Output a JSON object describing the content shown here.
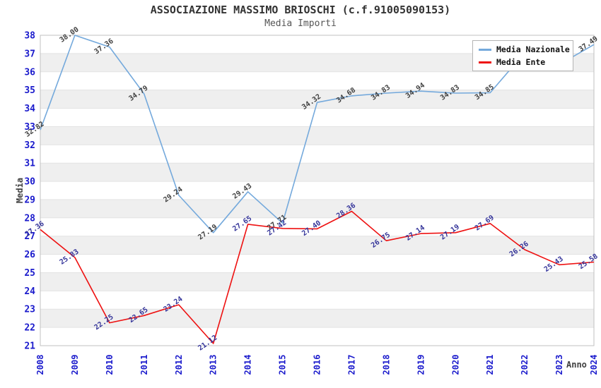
{
  "header": {
    "title": "ASSOCIAZIONE MASSIMO BRIOSCHI (c.f.91005090153)",
    "subtitle": "Media Importi"
  },
  "legend": {
    "items": [
      {
        "label": "Media Nazionale",
        "color": "#74a9dc"
      },
      {
        "label": "Media Ente",
        "color": "#ee1111"
      }
    ]
  },
  "axes": {
    "y_title": "Media",
    "x_title": "Anno"
  },
  "colors": {
    "tick_label_blue": "#1a1acc",
    "band_gray": "#efefef",
    "plot_border": "#c0c0c0",
    "nazionale_line": "#74a9dc",
    "ente_line": "#ee1111",
    "nazionale_point_label": "#404040",
    "ente_point_label": "#333399"
  },
  "chart_data": {
    "type": "line",
    "title": "ASSOCIAZIONE MASSIMO BRIOSCHI (c.f.91005090153)",
    "subtitle": "Media Importi",
    "xlabel": "Anno",
    "ylabel": "Media",
    "ylim": [
      21,
      38
    ],
    "grid": "horizontal-bands-alternating",
    "legend_position": "top-right-inside",
    "x": [
      2008,
      2009,
      2010,
      2011,
      2012,
      2013,
      2014,
      2015,
      2016,
      2017,
      2018,
      2019,
      2020,
      2021,
      2022,
      2023,
      2024
    ],
    "series": [
      {
        "name": "Media Nazionale",
        "color": "#74a9dc",
        "label_color": "#404040",
        "values": [
          32.82,
          38.0,
          37.36,
          34.79,
          29.24,
          27.19,
          29.43,
          27.71,
          34.32,
          34.68,
          34.83,
          34.94,
          34.83,
          34.85,
          37.05,
          36.4,
          37.49
        ],
        "hide_labels": [
          2023
        ]
      },
      {
        "name": "Media Ente",
        "color": "#ee1111",
        "label_color": "#333399",
        "values": [
          27.36,
          25.83,
          22.25,
          22.65,
          23.24,
          21.12,
          27.65,
          27.42,
          27.4,
          28.36,
          26.75,
          27.14,
          27.19,
          27.69,
          26.26,
          25.43,
          25.58
        ],
        "hide_labels": []
      }
    ],
    "notes": "2023 Media Nazionale label hidden behind legend box (value estimated from line); 2022 Media Nazionale label partially covered by legend"
  }
}
